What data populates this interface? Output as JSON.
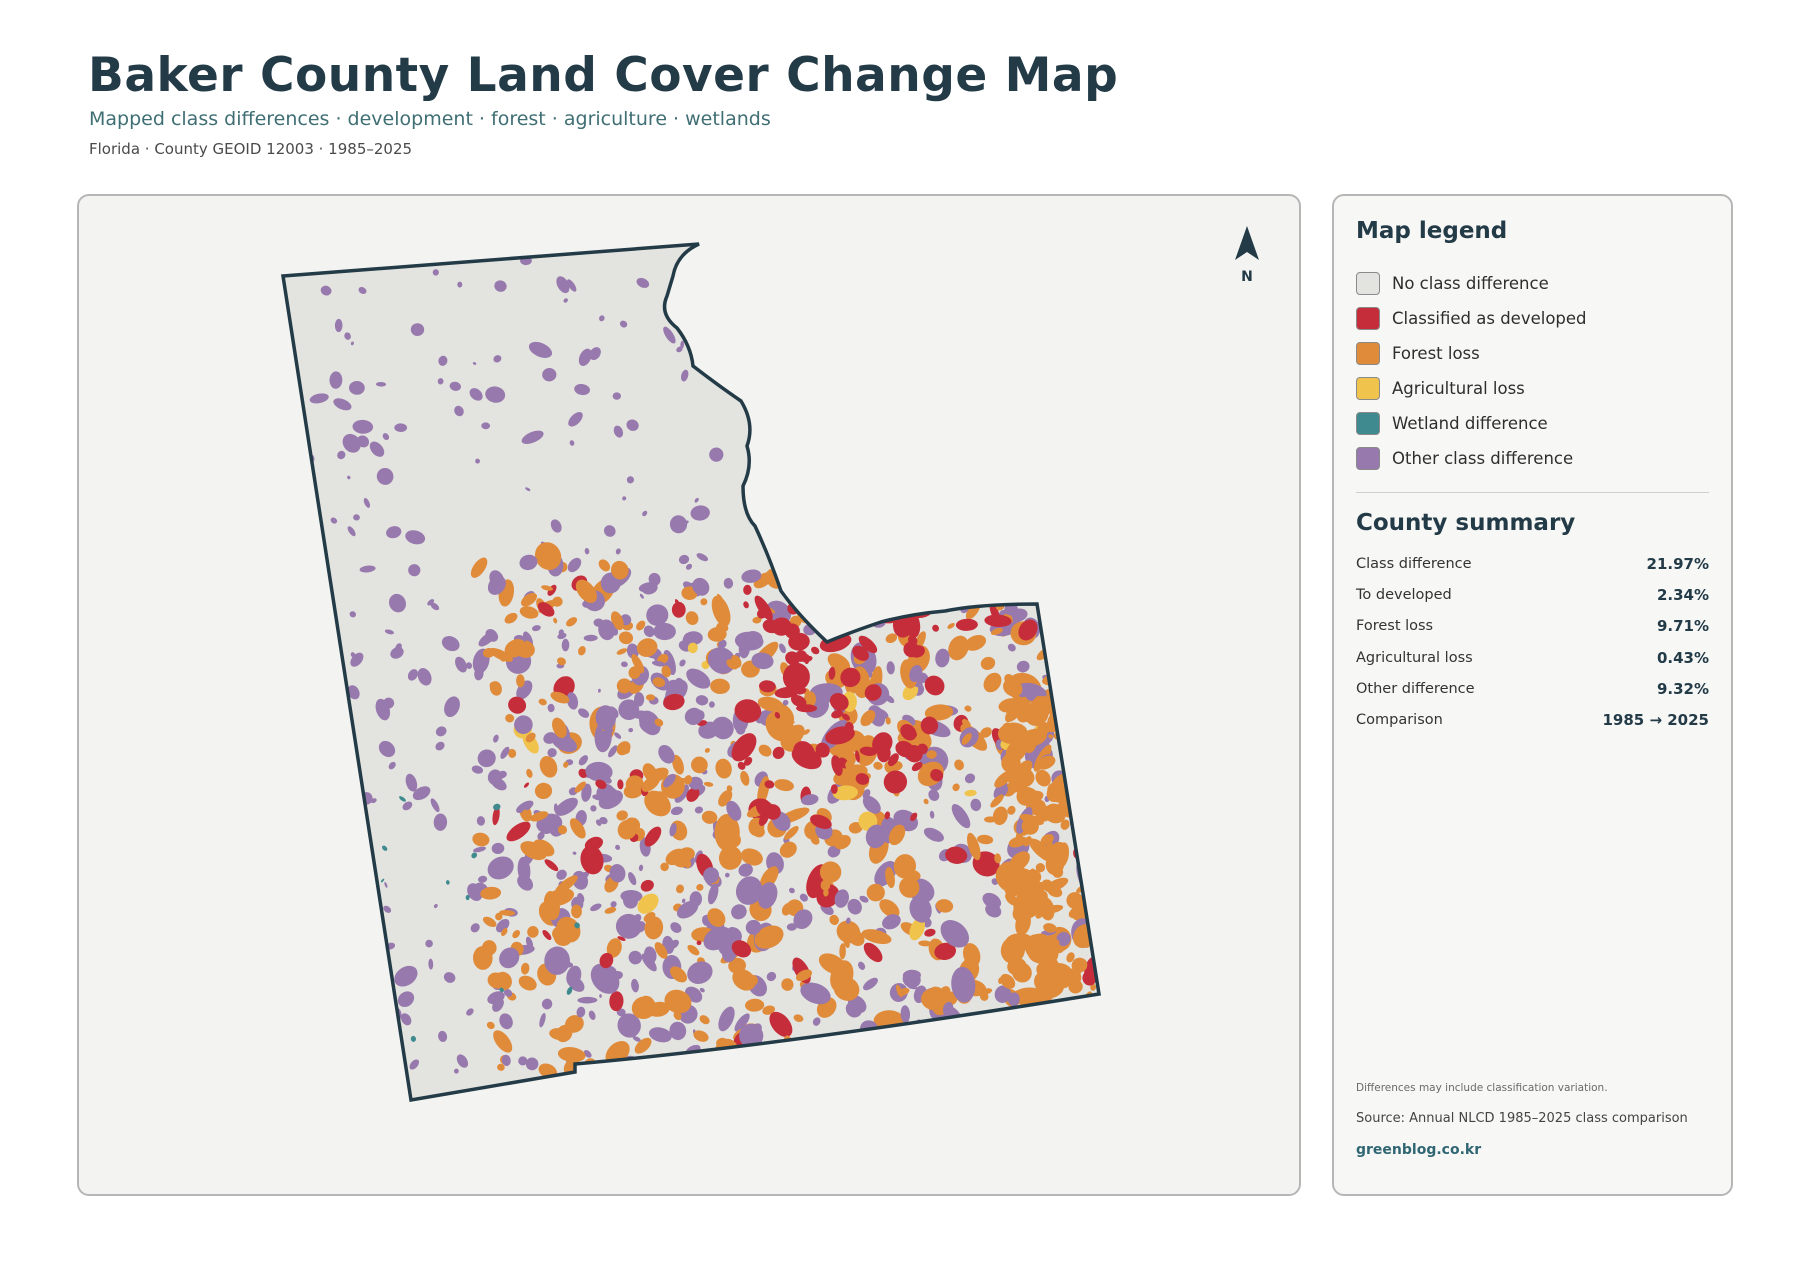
{
  "header": {
    "title": "Baker County Land Cover Change Map",
    "subtitle": "Mapped class differences · development · forest · agriculture · wetlands",
    "meta": "Florida · County GEOID 12003 · 1985–2025"
  },
  "map": {
    "north_label": "N",
    "colors": {
      "no_change": "#e3e3df",
      "developed": "#c62d3a",
      "forest_loss": "#e08b3a",
      "agricultural_loss": "#f0c44c",
      "wetland": "#3f8a8e",
      "other": "#9779ad",
      "boundary": "#233a47"
    }
  },
  "legend": {
    "heading": "Map legend",
    "items": [
      {
        "label": "No class difference",
        "color": "#e3e3df"
      },
      {
        "label": "Classified as developed",
        "color": "#c62d3a"
      },
      {
        "label": "Forest loss",
        "color": "#e08b3a"
      },
      {
        "label": "Agricultural loss",
        "color": "#f0c44c"
      },
      {
        "label": "Wetland difference",
        "color": "#3f8a8e"
      },
      {
        "label": "Other class difference",
        "color": "#9779ad"
      }
    ]
  },
  "summary": {
    "heading": "County summary",
    "rows": [
      {
        "label": "Class difference",
        "value": "21.97%"
      },
      {
        "label": "To developed",
        "value": "2.34%"
      },
      {
        "label": "Forest loss",
        "value": "9.71%"
      },
      {
        "label": "Agricultural loss",
        "value": "0.43%"
      },
      {
        "label": "Other difference",
        "value": "9.32%"
      },
      {
        "label": "Comparison",
        "value": "1985 → 2025"
      }
    ]
  },
  "footer": {
    "note": "Differences may include classification variation.",
    "source": "Source: Annual NLCD 1985–2025 class comparison",
    "site": "greenblog.co.kr"
  }
}
